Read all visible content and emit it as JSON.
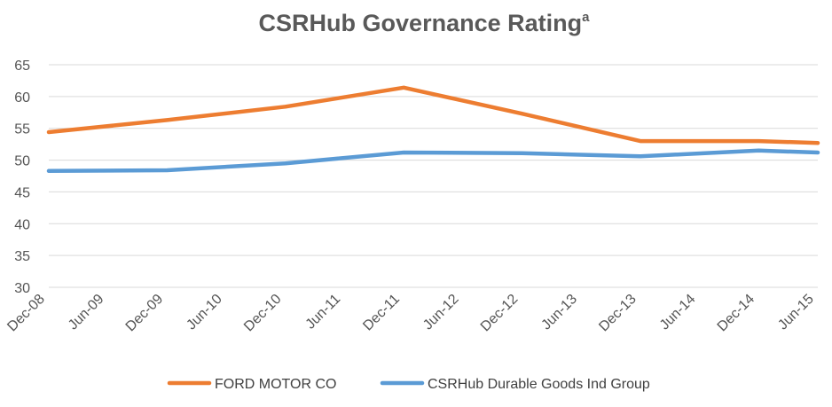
{
  "chart_data": {
    "type": "line",
    "title": "CSRHub Governance Rating",
    "title_superscript": "a",
    "xlabel": "",
    "ylabel": "",
    "categories": [
      "Dec-08",
      "Jun-09",
      "Dec-09",
      "Jun-10",
      "Dec-10",
      "Jun-11",
      "Dec-11",
      "Jun-12",
      "Dec-12",
      "Jun-13",
      "Dec-13",
      "Jun-14",
      "Dec-14",
      "Jun-15"
    ],
    "ylim": [
      30,
      65
    ],
    "yticks": [
      30,
      35,
      40,
      45,
      50,
      55,
      60,
      65
    ],
    "grid": true,
    "legend_position": "bottom",
    "series": [
      {
        "name": "FORD MOTOR CO",
        "color": "#ED7D31",
        "x": [
          "Dec-08",
          "Dec-09",
          "Dec-10",
          "Dec-11",
          "Dec-12",
          "Dec-13",
          "Dec-14",
          "Jun-15"
        ],
        "values": [
          54.4,
          56.3,
          58.4,
          61.4,
          57.3,
          53.0,
          53.0,
          52.7
        ]
      },
      {
        "name": "CSRHub Durable Goods Ind Group",
        "color": "#5B9BD5",
        "x": [
          "Dec-08",
          "Dec-09",
          "Dec-10",
          "Dec-11",
          "Dec-12",
          "Dec-13",
          "Dec-14",
          "Jun-15"
        ],
        "values": [
          48.3,
          48.4,
          49.5,
          51.2,
          51.1,
          50.6,
          51.5,
          51.2
        ]
      }
    ]
  }
}
